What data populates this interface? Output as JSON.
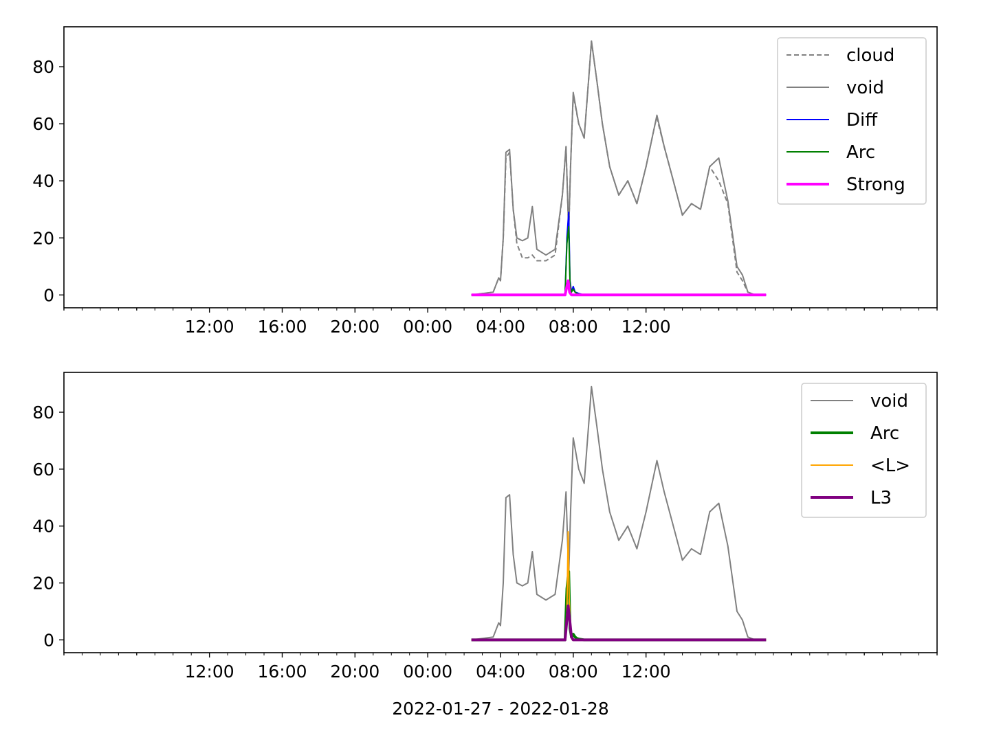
{
  "colors": {
    "cloud": "#808080",
    "void": "#808080",
    "Diff": "#0000ff",
    "Arc": "#008000",
    "Strong": "#ff00ff",
    "L": "#ffa500",
    "L3": "#800080"
  },
  "chart_data": [
    {
      "type": "line",
      "title": "",
      "xlabel": "",
      "ylabel": "",
      "xlim": [
        -8,
        40
      ],
      "ylim": [
        -4.5,
        94
      ],
      "x_ticks": [
        -8,
        -4,
        0,
        4,
        8,
        12,
        16,
        20,
        24,
        28,
        32,
        36,
        40
      ],
      "x_tick_labels": [
        "",
        "",
        "12:00",
        "16:00",
        "20:00",
        "00:00",
        "04:00",
        "08:00",
        "12:00",
        "",
        "",
        "",
        ""
      ],
      "y_ticks": [
        0,
        20,
        40,
        60,
        80
      ],
      "y_tick_labels": [
        "0",
        "20",
        "40",
        "60",
        "80"
      ],
      "legend_position": "upper-right",
      "grid": false,
      "series": [
        {
          "name": "cloud",
          "style": "dashed",
          "x": [
            14.4,
            15.6,
            15.9,
            16.0,
            16.15,
            16.3,
            16.5,
            16.7,
            16.9,
            17.2,
            17.5,
            17.75,
            18.0,
            18.5,
            19.0,
            19.4,
            19.6,
            19.75,
            19.85,
            20.0,
            20.3,
            20.6,
            20.9,
            21.0,
            21.3,
            21.6,
            22.0,
            22.5,
            23.0,
            23.5,
            24.0,
            24.5,
            24.6,
            25.0,
            25.5,
            26.0,
            26.5,
            27.0,
            27.5,
            28.0,
            28.5,
            29.0,
            29.3,
            29.6,
            30.0,
            30.6
          ],
          "y": [
            0,
            1,
            6,
            5,
            20,
            48,
            50,
            30,
            18,
            13,
            13,
            14,
            12,
            12,
            14,
            35,
            52,
            22,
            45,
            70,
            60,
            55,
            80,
            89,
            75,
            60,
            45,
            35,
            40,
            32,
            45,
            60,
            62,
            52,
            40,
            28,
            32,
            30,
            45,
            40,
            32,
            8,
            5,
            1,
            0,
            0
          ]
        },
        {
          "name": "void",
          "style": "solid",
          "x": [
            14.4,
            15.6,
            15.9,
            16.0,
            16.15,
            16.3,
            16.5,
            16.7,
            16.9,
            17.2,
            17.5,
            17.75,
            18.0,
            18.5,
            19.0,
            19.4,
            19.6,
            19.75,
            19.85,
            20.0,
            20.3,
            20.6,
            20.9,
            21.0,
            21.3,
            21.6,
            22.0,
            22.5,
            23.0,
            23.5,
            24.0,
            24.5,
            24.6,
            25.0,
            25.5,
            26.0,
            26.5,
            27.0,
            27.5,
            28.0,
            28.5,
            29.0,
            29.3,
            29.6,
            30.0,
            30.6
          ],
          "y": [
            0,
            1,
            6,
            5,
            20,
            50,
            51,
            30,
            20,
            19,
            20,
            31,
            16,
            14,
            16,
            35,
            52,
            22,
            45,
            71,
            60,
            55,
            80,
            89,
            75,
            60,
            45,
            35,
            40,
            32,
            45,
            60,
            63,
            52,
            40,
            28,
            32,
            30,
            45,
            48,
            33,
            10,
            7,
            1,
            0,
            0
          ]
        },
        {
          "name": "Diff",
          "style": "solid",
          "x": [
            14.4,
            19.55,
            19.65,
            19.75,
            19.82,
            19.9,
            20.0,
            20.1,
            20.2,
            20.3,
            20.6,
            30.6
          ],
          "y": [
            0,
            0,
            20,
            29,
            5,
            1,
            3,
            1,
            0.8,
            0.5,
            0,
            0
          ]
        },
        {
          "name": "Arc",
          "style": "solid",
          "x": [
            14.4,
            19.55,
            19.65,
            19.75,
            19.82,
            19.9,
            20.0,
            20.1,
            20.2,
            20.3,
            20.6,
            30.6
          ],
          "y": [
            0,
            0,
            18,
            24,
            4,
            1,
            2,
            1,
            0.5,
            0.3,
            0,
            0
          ]
        },
        {
          "name": "Strong",
          "style": "thick",
          "x": [
            14.4,
            19.55,
            19.65,
            19.72,
            19.8,
            19.9,
            30.6
          ],
          "y": [
            0,
            0,
            3,
            5,
            1,
            0,
            0
          ]
        }
      ]
    },
    {
      "type": "line",
      "title": "",
      "xlabel": "2022-01-27 - 2022-01-28",
      "ylabel": "",
      "xlim": [
        -8,
        40
      ],
      "ylim": [
        -4.5,
        94
      ],
      "x_ticks": [
        -8,
        -4,
        0,
        4,
        8,
        12,
        16,
        20,
        24,
        28,
        32,
        36,
        40
      ],
      "x_tick_labels": [
        "",
        "",
        "12:00",
        "16:00",
        "20:00",
        "00:00",
        "04:00",
        "08:00",
        "12:00",
        "",
        "",
        "",
        ""
      ],
      "y_ticks": [
        0,
        20,
        40,
        60,
        80
      ],
      "y_tick_labels": [
        "0",
        "20",
        "40",
        "60",
        "80"
      ],
      "legend_position": "upper-right",
      "grid": false,
      "series": [
        {
          "name": "void",
          "style": "solid",
          "x": [
            14.4,
            15.6,
            15.9,
            16.0,
            16.15,
            16.3,
            16.5,
            16.7,
            16.9,
            17.2,
            17.5,
            17.75,
            18.0,
            18.5,
            19.0,
            19.4,
            19.6,
            19.75,
            19.85,
            20.0,
            20.3,
            20.6,
            20.9,
            21.0,
            21.3,
            21.6,
            22.0,
            22.5,
            23.0,
            23.5,
            24.0,
            24.5,
            24.6,
            25.0,
            25.5,
            26.0,
            26.5,
            27.0,
            27.5,
            28.0,
            28.5,
            29.0,
            29.3,
            29.6,
            30.0,
            30.6
          ],
          "y": [
            0,
            1,
            6,
            5,
            20,
            50,
            51,
            30,
            20,
            19,
            20,
            31,
            16,
            14,
            16,
            35,
            52,
            22,
            45,
            71,
            60,
            55,
            80,
            89,
            75,
            60,
            45,
            35,
            40,
            32,
            45,
            60,
            63,
            52,
            40,
            28,
            32,
            30,
            45,
            48,
            33,
            10,
            7,
            1,
            0,
            0
          ]
        },
        {
          "name": "Arc",
          "style": "thick",
          "x": [
            14.4,
            19.55,
            19.65,
            19.75,
            19.82,
            19.9,
            20.0,
            20.1,
            20.2,
            20.3,
            20.6,
            30.6
          ],
          "y": [
            0,
            0,
            18,
            24,
            4,
            1,
            2,
            1,
            0.5,
            0.3,
            0,
            0
          ]
        },
        {
          "name": "<L>",
          "style": "solid",
          "x": [
            14.4,
            19.55,
            19.65,
            19.72,
            19.78,
            19.85,
            19.95,
            30.6
          ],
          "y": [
            0,
            0,
            10,
            38,
            14,
            3,
            0,
            0
          ]
        },
        {
          "name": "L3",
          "style": "thick",
          "x": [
            14.4,
            19.55,
            19.62,
            19.72,
            19.82,
            19.9,
            20.0,
            30.6
          ],
          "y": [
            0,
            0,
            5,
            12,
            6,
            1,
            0,
            0
          ]
        }
      ]
    }
  ]
}
